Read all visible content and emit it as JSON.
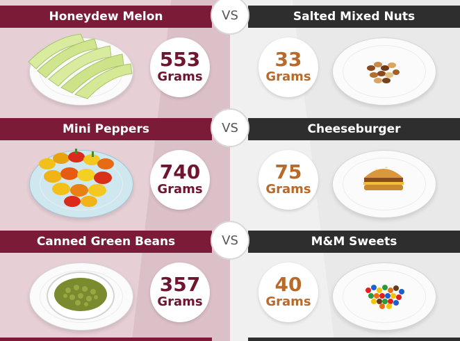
{
  "vs_label": "VS",
  "rows": [
    {
      "left": {
        "name": "Honeydew Melon",
        "amount": "553",
        "unit": "Grams"
      },
      "right": {
        "name": "Salted Mixed Nuts",
        "amount": "33",
        "unit": "Grams"
      }
    },
    {
      "left": {
        "name": "Mini Peppers",
        "amount": "740",
        "unit": "Grams"
      },
      "right": {
        "name": "Cheeseburger",
        "amount": "75",
        "unit": "Grams"
      }
    },
    {
      "left": {
        "name": "Canned Green Beans",
        "amount": "357",
        "unit": "Grams"
      },
      "right": {
        "name": "M&M Sweets",
        "amount": "40",
        "unit": "Grams"
      }
    }
  ],
  "colors": {
    "left_header": "#7b1b37",
    "right_header": "#2e2e2e",
    "left_number": "#6e1630",
    "right_number": "#b86a2a"
  }
}
